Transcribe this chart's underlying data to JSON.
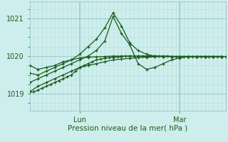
{
  "title": "Pression niveau de la mer( hPa )",
  "ylabel_ticks": [
    1019,
    1020,
    1021
  ],
  "ylim": [
    1018.55,
    1021.45
  ],
  "xlim": [
    0,
    47
  ],
  "bg_color": "#ceeeed",
  "grid_major_color": "#9ecfcf",
  "grid_minor_color": "#b8e0e0",
  "line_color": "#1a5c1a",
  "x_lun": 12,
  "x_mar": 36,
  "series": [
    {
      "x": [
        0,
        1,
        2,
        3,
        4,
        5,
        6,
        7,
        8,
        9,
        10,
        11,
        12,
        13,
        14,
        15,
        16,
        17,
        18,
        19,
        20,
        21,
        22,
        23,
        24,
        25,
        26,
        27,
        28,
        29,
        30,
        31,
        32,
        33,
        34,
        35,
        36,
        37,
        38,
        39,
        40,
        41,
        42,
        43,
        44,
        45,
        46,
        47
      ],
      "y": [
        1019.05,
        1019.05,
        1019.1,
        1019.15,
        1019.2,
        1019.25,
        1019.3,
        1019.35,
        1019.4,
        1019.45,
        1019.5,
        1019.6,
        1019.7,
        1019.75,
        1019.8,
        1019.85,
        1019.9,
        1019.92,
        1019.94,
        1019.96,
        1019.97,
        1019.98,
        1019.99,
        1020.0,
        1020.0,
        1020.0,
        1020.0,
        1020.0,
        1020.0,
        1020.0,
        1020.0,
        1020.0,
        1020.0,
        1020.0,
        1019.99,
        1019.99,
        1019.99,
        1019.99,
        1019.99,
        1019.99,
        1019.99,
        1019.99,
        1019.99,
        1019.99,
        1019.99,
        1019.99,
        1019.99,
        1019.99
      ]
    },
    {
      "x": [
        0,
        2,
        4,
        6,
        8,
        10,
        12,
        14,
        16,
        18,
        20,
        22,
        24,
        26,
        28,
        30,
        32,
        34,
        36,
        38,
        40,
        42,
        44,
        46
      ],
      "y": [
        1019.75,
        1019.65,
        1019.7,
        1019.75,
        1019.85,
        1019.9,
        1019.95,
        1019.97,
        1019.98,
        1019.99,
        1020.0,
        1020.0,
        1020.0,
        1020.0,
        1020.0,
        1020.0,
        1019.99,
        1019.99,
        1019.99,
        1019.99,
        1019.99,
        1019.99,
        1019.99,
        1019.99
      ]
    },
    {
      "x": [
        0,
        2,
        4,
        6,
        8,
        10,
        12,
        14,
        16,
        18,
        20,
        22,
        24,
        26,
        28,
        30,
        32,
        34,
        36,
        38,
        40,
        42,
        44,
        46
      ],
      "y": [
        1019.55,
        1019.5,
        1019.6,
        1019.7,
        1019.8,
        1019.9,
        1020.05,
        1020.25,
        1020.45,
        1020.75,
        1021.15,
        1020.8,
        1020.35,
        1020.15,
        1020.05,
        1020.0,
        1019.99,
        1019.99,
        1019.99,
        1019.99,
        1019.99,
        1019.99,
        1019.99,
        1019.99
      ]
    },
    {
      "x": [
        0,
        2,
        4,
        6,
        8,
        10,
        12,
        14,
        16,
        18,
        20,
        22,
        24,
        26,
        28,
        30,
        32,
        34,
        36,
        38,
        40,
        42,
        44,
        46
      ],
      "y": [
        1019.3,
        1019.4,
        1019.5,
        1019.6,
        1019.7,
        1019.8,
        1019.9,
        1020.0,
        1020.15,
        1020.4,
        1021.05,
        1020.6,
        1020.3,
        1019.8,
        1019.65,
        1019.7,
        1019.8,
        1019.9,
        1019.95,
        1019.99,
        1019.99,
        1019.99,
        1019.99,
        1019.99
      ]
    },
    {
      "x": [
        0,
        2,
        4,
        6,
        8,
        10,
        12,
        14,
        16,
        18,
        20,
        22,
        24,
        26,
        28,
        30,
        32,
        34,
        36,
        38,
        40,
        42,
        44,
        46
      ],
      "y": [
        1019.05,
        1019.2,
        1019.3,
        1019.4,
        1019.5,
        1019.6,
        1019.7,
        1019.75,
        1019.8,
        1019.85,
        1019.9,
        1019.92,
        1019.94,
        1019.96,
        1019.97,
        1019.98,
        1019.99,
        1019.99,
        1019.99,
        1019.99,
        1019.99,
        1019.99,
        1019.99,
        1019.99
      ]
    }
  ]
}
